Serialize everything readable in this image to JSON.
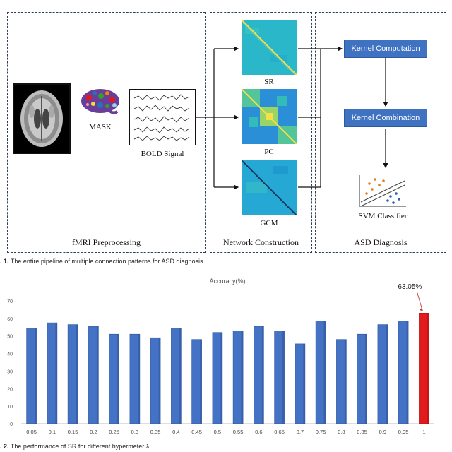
{
  "figure1": {
    "panels": {
      "preprocessing": "fMRI Preprocessing",
      "network": "Network Construction",
      "diagnosis": "ASD Diagnosis"
    },
    "labels": {
      "mask": "MASK",
      "bold": "BOLD Signal",
      "sr": "SR",
      "pc": "PC",
      "gcm": "GCM",
      "svm": "SVM Classifier"
    },
    "buttons": {
      "kernel_computation": "Kernel Computation",
      "kernel_combination": "Kernel Combination"
    },
    "caption_prefix": ". 1.",
    "caption_text": " The entire pipeline of multiple connection patterns for ASD diagnosis."
  },
  "figure2": {
    "caption_prefix": ". 2.",
    "caption_text": " The performance of SR for different hypermeter λ."
  },
  "chart_data": {
    "type": "bar",
    "title": "Accuracy(%)",
    "categories": [
      "0.05",
      "0.1",
      "0.15",
      "0.2",
      "0.25",
      "0.3",
      "0.35",
      "0.4",
      "0.45",
      "0.5",
      "0.55",
      "0.6",
      "0.65",
      "0.7",
      "0.75",
      "0.8",
      "0.85",
      "0.9",
      "0.95",
      "1"
    ],
    "values": [
      54.5,
      57.5,
      56.5,
      55.5,
      51,
      51,
      49,
      54.5,
      48,
      52,
      53,
      55.5,
      53,
      45.5,
      58.5,
      48,
      51,
      56.5,
      58.5,
      63.05
    ],
    "ylim": [
      0,
      70
    ],
    "yticks": [
      0,
      10,
      20,
      30,
      40,
      50,
      60,
      70
    ],
    "bar_color": "#4472c4",
    "highlight_color": "#e31a1c",
    "highlight_index": 19,
    "annotation": "63.05%",
    "grid": false,
    "xlabel": "",
    "ylabel": ""
  }
}
